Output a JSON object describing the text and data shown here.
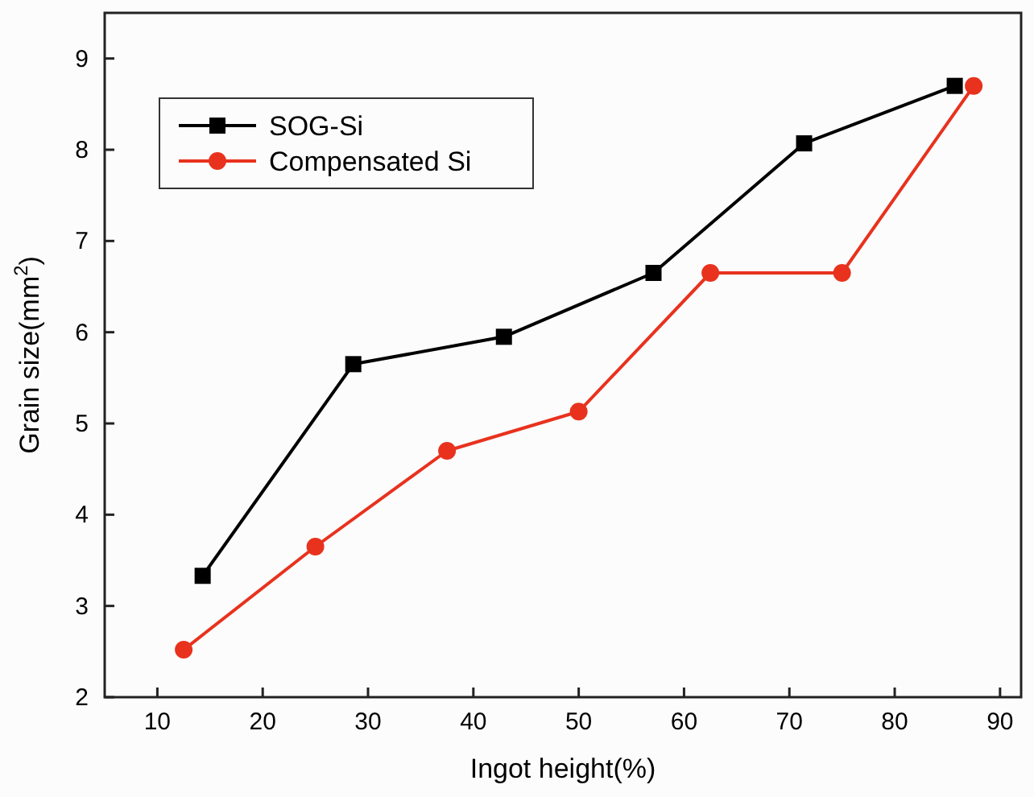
{
  "chart_data": {
    "type": "line",
    "xlabel": "Ingot height(%)",
    "ylabel": "Grain size(mm$^{2}$)",
    "xlim": [
      5,
      92
    ],
    "xticks": [
      10,
      20,
      30,
      40,
      50,
      60,
      70,
      80,
      90
    ],
    "ylim": [
      2,
      9.5
    ],
    "yticks": [
      2,
      3,
      4,
      5,
      6,
      7,
      8,
      9
    ],
    "grid": false,
    "legend": "top left",
    "series": [
      {
        "name": "SOG-Si",
        "color": "#000000",
        "marker": "square",
        "x": [
          14.3,
          28.6,
          42.9,
          57.1,
          71.4,
          85.7
        ],
        "values": [
          3.33,
          5.65,
          5.95,
          6.65,
          8.07,
          8.7
        ]
      },
      {
        "name": "Compensated Si",
        "color": "#e8321e",
        "marker": "circle",
        "x": [
          12.5,
          25,
          37.5,
          50,
          62.5,
          75,
          87.5
        ],
        "values": [
          2.52,
          3.65,
          4.7,
          5.13,
          6.65,
          6.65,
          8.7
        ]
      }
    ]
  }
}
